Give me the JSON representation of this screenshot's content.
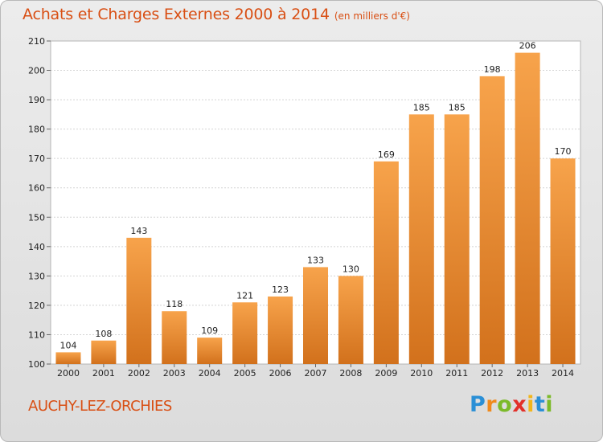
{
  "chart_data": {
    "type": "bar",
    "title": "Achats et Charges Externes 2000 à 2014",
    "subtitle": "(en milliers d'€)",
    "categories": [
      "2000",
      "2001",
      "2002",
      "2003",
      "2004",
      "2005",
      "2006",
      "2007",
      "2008",
      "2009",
      "2010",
      "2011",
      "2012",
      "2013",
      "2014"
    ],
    "values": [
      104,
      108,
      143,
      118,
      109,
      121,
      123,
      133,
      130,
      169,
      185,
      185,
      198,
      206,
      170
    ],
    "ylim": [
      100,
      210
    ],
    "yticks": [
      100,
      110,
      120,
      130,
      140,
      150,
      160,
      170,
      180,
      190,
      200,
      210
    ],
    "grid": true,
    "bar_color_top": "#f7a34b",
    "bar_color_bottom": "#d2711c"
  },
  "commune": "AUCHY-LEZ-ORCHIES",
  "logo": {
    "letters": [
      "P",
      "r",
      "o",
      "x",
      "i",
      "t",
      "i"
    ],
    "colors": [
      "#2a8fd6",
      "#f08a1c",
      "#7cba2a",
      "#e2302a",
      "#f2b51a",
      "#2a8fd6",
      "#7cba2a"
    ]
  }
}
